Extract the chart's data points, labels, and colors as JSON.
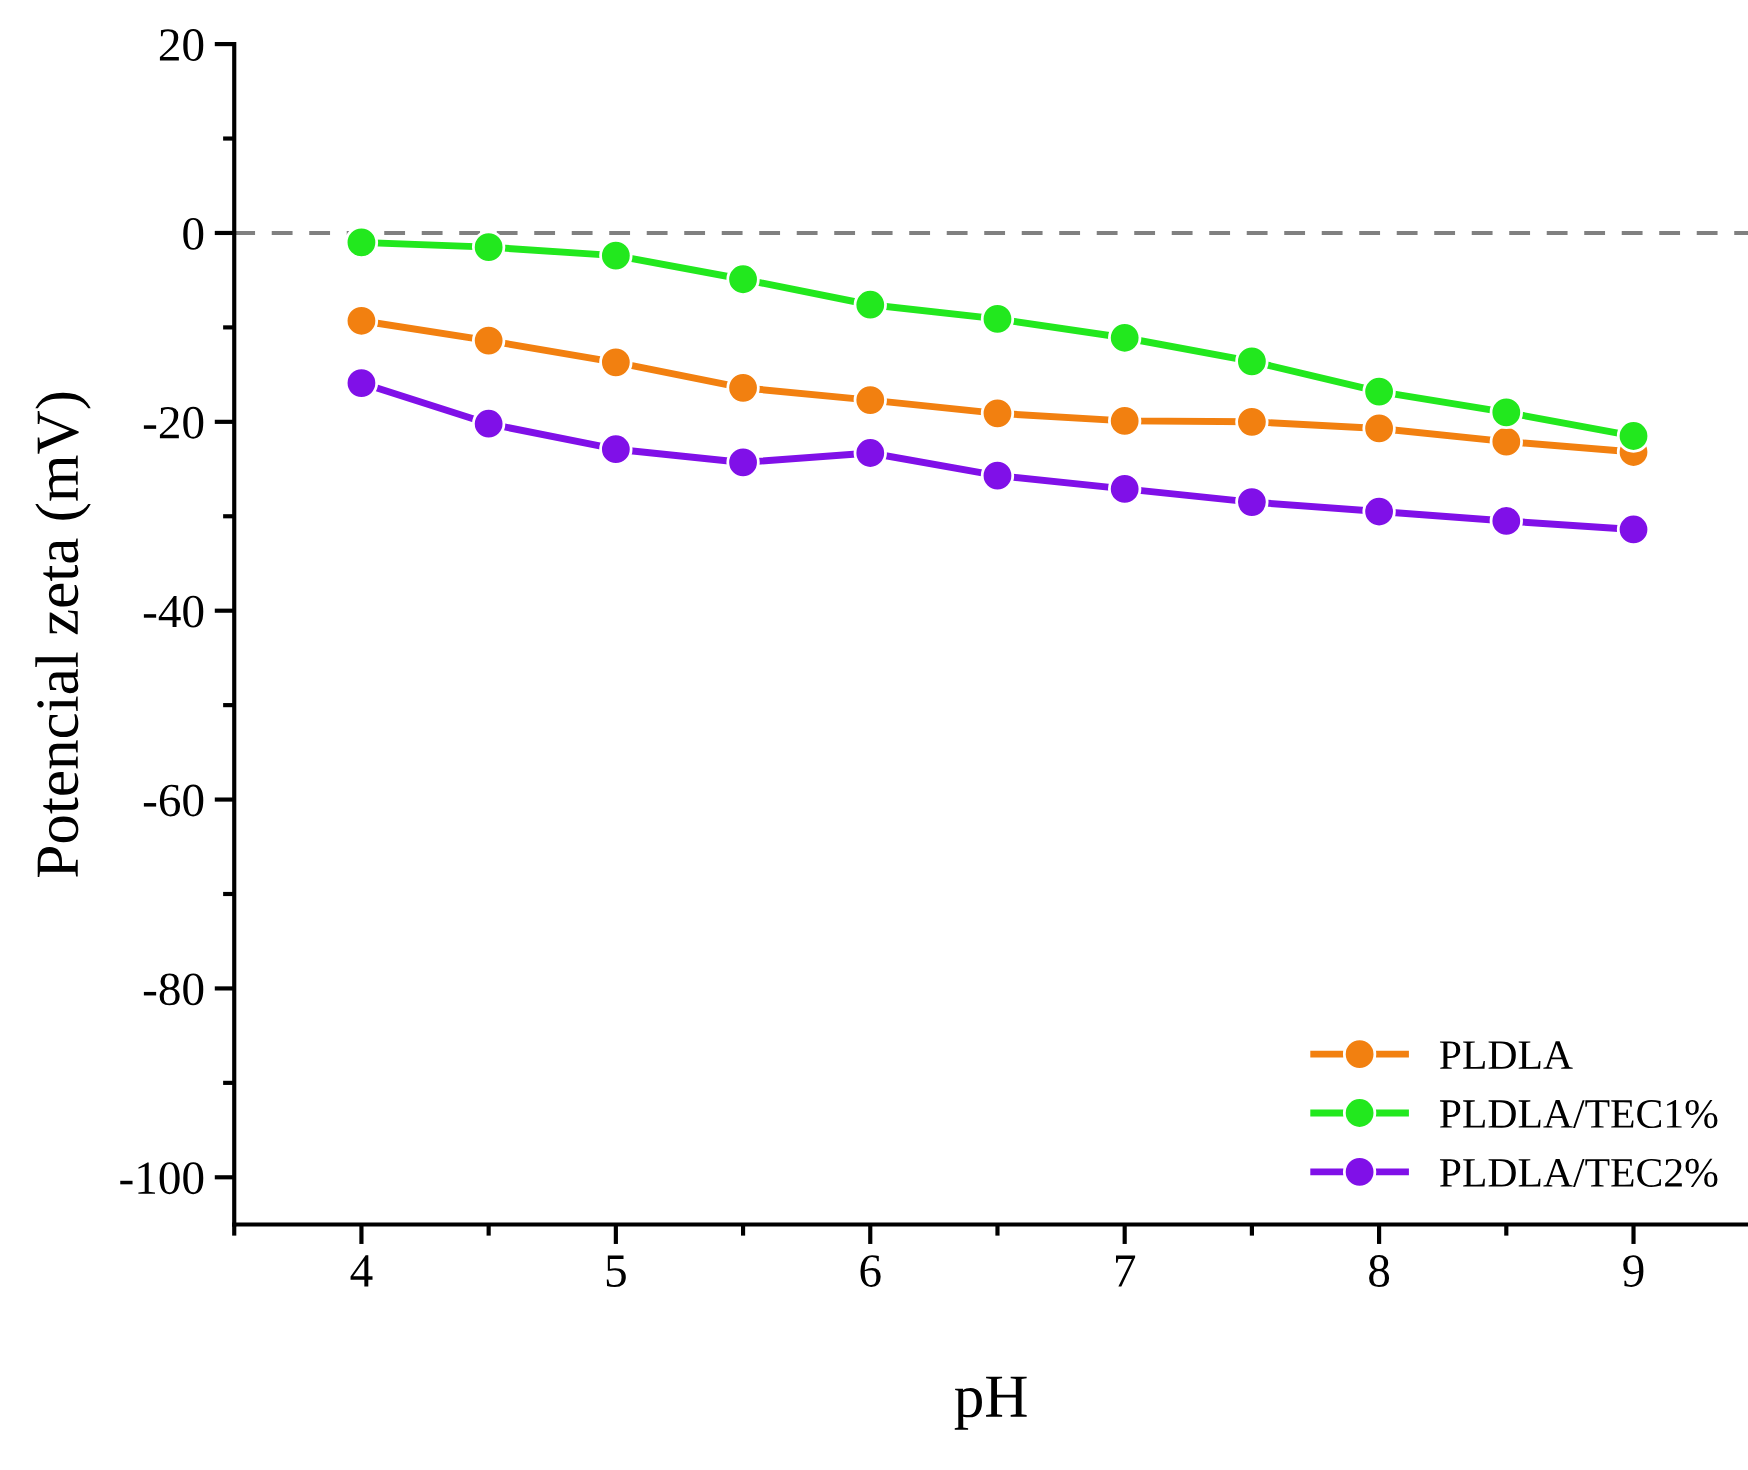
{
  "chart_data": {
    "type": "line",
    "xlabel": "pH",
    "ylabel": "Potencial zeta (mV)",
    "x": [
      4,
      4.5,
      5,
      5.5,
      6,
      6.5,
      7,
      7.5,
      8,
      8.5,
      9
    ],
    "series": [
      {
        "name": "PLDLA",
        "color": "#f28010",
        "values": [
          -9.3,
          -11.4,
          -13.7,
          -16.4,
          -17.7,
          -19.1,
          -19.9,
          -20.0,
          -20.7,
          -22.1,
          -23.2
        ]
      },
      {
        "name": "PLDLA/TEC1%",
        "color": "#22e81e",
        "values": [
          -1.0,
          -1.5,
          -2.4,
          -4.9,
          -7.6,
          -9.1,
          -11.1,
          -13.6,
          -16.8,
          -19.0,
          -21.5
        ]
      },
      {
        "name": "PLDLA/TEC2%",
        "color": "#8010e8",
        "values": [
          -15.9,
          -20.2,
          -22.9,
          -24.3,
          -23.3,
          -25.7,
          -27.1,
          -28.5,
          -29.5,
          -30.5,
          -31.4
        ]
      }
    ],
    "xlim": [
      3.5,
      9.45
    ],
    "xticks": [
      4,
      5,
      6,
      7,
      8,
      9
    ],
    "ylim": [
      -105,
      20
    ],
    "yticks": [
      -100,
      -80,
      -60,
      -40,
      -20,
      0,
      20
    ],
    "ref_lines": [
      {
        "axis": "y",
        "value": 0,
        "color": "#808080",
        "line_style": "dashed"
      }
    ],
    "marker": "circle",
    "line_style": "solid",
    "grid": false,
    "legend": "bottom right"
  }
}
